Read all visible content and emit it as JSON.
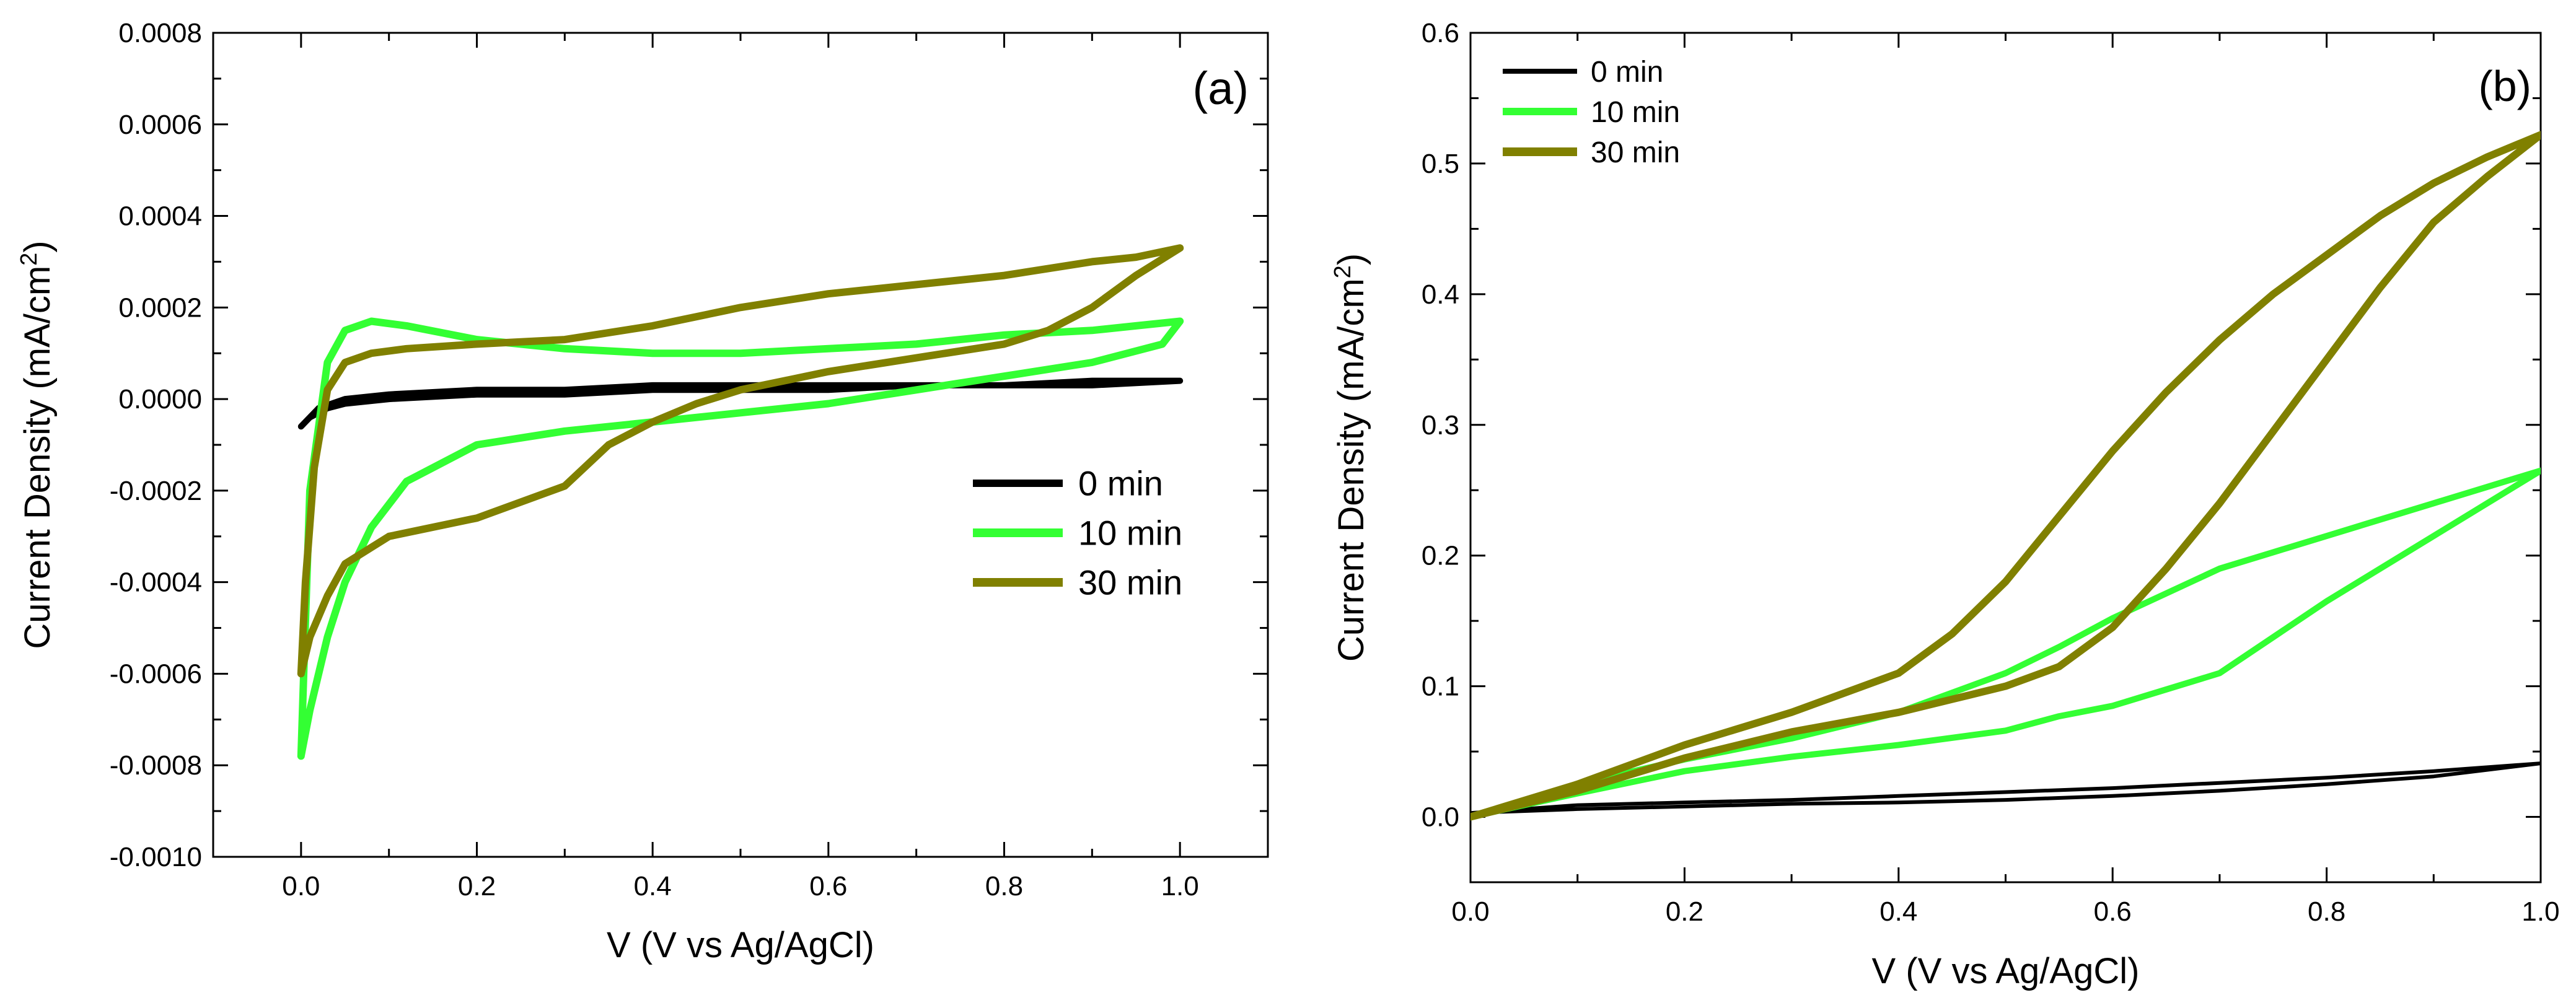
{
  "chart_data": [
    {
      "type": "line",
      "panel_label": "(a)",
      "xlabel": "V (V vs Ag/AgCl)",
      "ylabel": "Current Density (mA/cm",
      "ylabel_sup": "2",
      "ylabel_close": ")",
      "xlim": [
        -0.1,
        1.1
      ],
      "ylim": [
        -0.001,
        0.0008
      ],
      "xticks": [
        0.0,
        0.2,
        0.4,
        0.6,
        0.8,
        1.0
      ],
      "xtick_labels": [
        "0.0",
        "0.2",
        "0.4",
        "0.6",
        "0.8",
        "1.0"
      ],
      "yticks": [
        -0.001,
        -0.0008,
        -0.0006,
        -0.0004,
        -0.0002,
        0.0,
        0.0002,
        0.0004,
        0.0006,
        0.0008
      ],
      "ytick_labels": [
        "-0.0010",
        "-0.0008",
        "-0.0006",
        "-0.0004",
        "-0.0002",
        "0.0000",
        "0.0002",
        "0.0004",
        "0.0006",
        "0.0008"
      ],
      "legend_position": "center-right",
      "series": [
        {
          "name": "0 min",
          "color": "#000000",
          "x": [
            0.0,
            0.01,
            0.03,
            0.05,
            0.1,
            0.2,
            0.3,
            0.4,
            0.5,
            0.6,
            0.7,
            0.8,
            0.9,
            1.0,
            0.9,
            0.8,
            0.7,
            0.6,
            0.5,
            0.4,
            0.3,
            0.2,
            0.1,
            0.05,
            0.02,
            0.0
          ],
          "y": [
            -6e-05,
            -4e-05,
            -2e-05,
            -1e-05,
            0.0,
            1e-05,
            1e-05,
            2e-05,
            2e-05,
            2e-05,
            3e-05,
            3e-05,
            3e-05,
            4e-05,
            4e-05,
            3e-05,
            3e-05,
            3e-05,
            3e-05,
            3e-05,
            2e-05,
            2e-05,
            1e-05,
            0.0,
            -2e-05,
            -6e-05
          ]
        },
        {
          "name": "10 min",
          "color": "#33ff33",
          "x": [
            0.0,
            0.003,
            0.01,
            0.03,
            0.05,
            0.08,
            0.12,
            0.2,
            0.3,
            0.4,
            0.5,
            0.6,
            0.7,
            0.8,
            0.9,
            0.95,
            1.0,
            0.98,
            0.9,
            0.8,
            0.7,
            0.6,
            0.5,
            0.4,
            0.3,
            0.2,
            0.12,
            0.08,
            0.05,
            0.03,
            0.01,
            0.0
          ],
          "y": [
            -0.00078,
            -0.0006,
            -0.0002,
            8e-05,
            0.00015,
            0.00017,
            0.00016,
            0.00013,
            0.00011,
            0.0001,
            0.0001,
            0.00011,
            0.00012,
            0.00014,
            0.00015,
            0.00016,
            0.00017,
            0.00012,
            8e-05,
            5e-05,
            2e-05,
            -1e-05,
            -3e-05,
            -5e-05,
            -7e-05,
            -0.0001,
            -0.00018,
            -0.00028,
            -0.0004,
            -0.00052,
            -0.00068,
            -0.00078
          ]
        },
        {
          "name": "30 min",
          "color": "#808000",
          "x": [
            0.0,
            0.005,
            0.015,
            0.03,
            0.05,
            0.08,
            0.12,
            0.2,
            0.3,
            0.4,
            0.5,
            0.6,
            0.7,
            0.8,
            0.9,
            0.95,
            1.0,
            0.95,
            0.9,
            0.85,
            0.8,
            0.7,
            0.6,
            0.5,
            0.45,
            0.4,
            0.35,
            0.3,
            0.2,
            0.1,
            0.05,
            0.03,
            0.01,
            0.0
          ],
          "y": [
            -0.0006,
            -0.0004,
            -0.00015,
            2e-05,
            8e-05,
            0.0001,
            0.00011,
            0.00012,
            0.00013,
            0.00016,
            0.0002,
            0.00023,
            0.00025,
            0.00027,
            0.0003,
            0.00031,
            0.00033,
            0.00027,
            0.0002,
            0.00015,
            0.00012,
            9e-05,
            6e-05,
            2e-05,
            -1e-05,
            -5e-05,
            -0.0001,
            -0.00019,
            -0.00026,
            -0.0003,
            -0.00036,
            -0.00043,
            -0.00052,
            -0.0006
          ]
        }
      ]
    },
    {
      "type": "line",
      "panel_label": "(b)",
      "xlabel": "V (V vs Ag/AgCl)",
      "ylabel": "Current Density (mA/cm",
      "ylabel_sup": "2",
      "ylabel_close": ")",
      "xlim": [
        0.0,
        1.0
      ],
      "ylim": [
        -0.05,
        0.6
      ],
      "xticks": [
        0.0,
        0.2,
        0.4,
        0.6,
        0.8,
        1.0
      ],
      "xtick_labels": [
        "0.0",
        "0.2",
        "0.4",
        "0.6",
        "0.8",
        "1.0"
      ],
      "yticks": [
        0.0,
        0.1,
        0.2,
        0.3,
        0.4,
        0.5,
        0.6
      ],
      "ytick_labels": [
        "0.0",
        "0.1",
        "0.2",
        "0.3",
        "0.4",
        "0.5",
        "0.6"
      ],
      "legend_position": "top-left",
      "series": [
        {
          "name": "0 min",
          "color": "#000000",
          "x": [
            0.0,
            0.1,
            0.2,
            0.3,
            0.4,
            0.5,
            0.6,
            0.7,
            0.8,
            0.9,
            1.0,
            0.9,
            0.8,
            0.7,
            0.6,
            0.5,
            0.4,
            0.3,
            0.2,
            0.1,
            0.0
          ],
          "y": [
            0.003,
            0.009,
            0.011,
            0.013,
            0.016,
            0.019,
            0.022,
            0.026,
            0.03,
            0.035,
            0.041,
            0.031,
            0.025,
            0.02,
            0.016,
            0.013,
            0.011,
            0.01,
            0.008,
            0.006,
            0.003
          ]
        },
        {
          "name": "10 min",
          "color": "#33ff33",
          "x": [
            0.0,
            0.1,
            0.2,
            0.3,
            0.4,
            0.5,
            0.55,
            0.6,
            0.7,
            0.8,
            0.9,
            1.0,
            0.9,
            0.8,
            0.7,
            0.6,
            0.55,
            0.5,
            0.4,
            0.3,
            0.2,
            0.1,
            0.0
          ],
          "y": [
            0.0,
            0.025,
            0.044,
            0.06,
            0.08,
            0.11,
            0.13,
            0.152,
            0.19,
            0.215,
            0.24,
            0.265,
            0.215,
            0.165,
            0.11,
            0.085,
            0.077,
            0.066,
            0.055,
            0.046,
            0.035,
            0.018,
            0.0
          ]
        },
        {
          "name": "30 min",
          "color": "#808000",
          "x": [
            0.0,
            0.1,
            0.2,
            0.3,
            0.4,
            0.45,
            0.5,
            0.55,
            0.6,
            0.65,
            0.7,
            0.75,
            0.8,
            0.85,
            0.9,
            0.95,
            1.0,
            0.95,
            0.9,
            0.85,
            0.8,
            0.75,
            0.7,
            0.65,
            0.6,
            0.55,
            0.5,
            0.45,
            0.4,
            0.3,
            0.2,
            0.1,
            0.0
          ],
          "y": [
            0.0,
            0.025,
            0.055,
            0.08,
            0.11,
            0.14,
            0.18,
            0.23,
            0.28,
            0.325,
            0.365,
            0.4,
            0.43,
            0.46,
            0.485,
            0.505,
            0.522,
            0.49,
            0.455,
            0.405,
            0.35,
            0.295,
            0.24,
            0.19,
            0.145,
            0.115,
            0.1,
            0.09,
            0.08,
            0.065,
            0.045,
            0.02,
            0.0
          ]
        }
      ]
    }
  ]
}
